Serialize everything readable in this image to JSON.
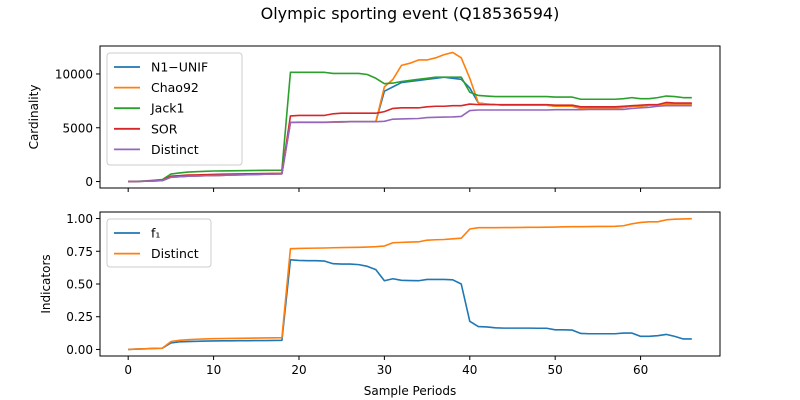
{
  "chart_data": [
    {
      "type": "line",
      "title": "Olympic sporting event (Q18536594)",
      "xlabel": "",
      "ylabel": "Cardinality",
      "xlim": [
        -3.3,
        69.3
      ],
      "ylim": [
        -600,
        12600
      ],
      "xticks": [
        0,
        10,
        20,
        30,
        40,
        50,
        60
      ],
      "yticks": [
        0,
        5000,
        10000
      ],
      "ytick_labels": [
        "0",
        "5000",
        "10000"
      ],
      "xtick_labels_visible": false,
      "legend": "top-left",
      "grid": false,
      "x": [
        0,
        1,
        2,
        3,
        4,
        5,
        6,
        7,
        8,
        9,
        10,
        11,
        12,
        13,
        14,
        15,
        16,
        17,
        18,
        19,
        20,
        21,
        22,
        23,
        24,
        25,
        26,
        27,
        28,
        29,
        30,
        31,
        32,
        33,
        34,
        35,
        36,
        37,
        38,
        39,
        40,
        41,
        42,
        43,
        44,
        45,
        46,
        47,
        48,
        49,
        50,
        51,
        52,
        53,
        54,
        55,
        56,
        57,
        58,
        59,
        60,
        61,
        62,
        63,
        64,
        65,
        66
      ],
      "series": [
        {
          "name": "N1−UNIF",
          "color": "#1f77b4",
          "values": [
            0,
            10,
            30,
            60,
            90,
            400,
            450,
            500,
            520,
            540,
            560,
            580,
            600,
            620,
            640,
            660,
            680,
            700,
            720,
            5500,
            5500,
            5500,
            5500,
            5500,
            5520,
            5540,
            5560,
            5560,
            5560,
            5560,
            8400,
            8800,
            9200,
            9300,
            9400,
            9500,
            9600,
            9700,
            9600,
            9500,
            8700,
            7300,
            7200,
            7150,
            7100,
            7100,
            7100,
            7100,
            7100,
            7100,
            7000,
            7000,
            7000,
            6800,
            6800,
            6800,
            6800,
            6800,
            6900,
            7000,
            7000,
            7100,
            7100,
            7200,
            7200,
            7200,
            7200
          ]
        },
        {
          "name": "Chao92",
          "color": "#ff7f0e",
          "values": [
            0,
            10,
            30,
            60,
            90,
            400,
            450,
            500,
            520,
            540,
            560,
            580,
            600,
            620,
            640,
            660,
            680,
            700,
            720,
            5500,
            5500,
            5500,
            5500,
            5500,
            5520,
            5540,
            5560,
            5560,
            5560,
            5560,
            8800,
            9500,
            10800,
            11000,
            11300,
            11300,
            11500,
            11800,
            12000,
            11500,
            9600,
            7300,
            7200,
            7150,
            7100,
            7100,
            7100,
            7100,
            7100,
            7100,
            7000,
            7000,
            7000,
            6800,
            6800,
            6800,
            6800,
            6800,
            6900,
            7000,
            7000,
            7100,
            7100,
            7200,
            7200,
            7200,
            7200
          ]
        },
        {
          "name": "Jack1",
          "color": "#2ca02c",
          "values": [
            0,
            20,
            60,
            120,
            180,
            700,
            800,
            880,
            920,
            950,
            980,
            990,
            1000,
            1010,
            1020,
            1030,
            1040,
            1050,
            1060,
            10150,
            10150,
            10150,
            10150,
            10150,
            10050,
            10050,
            10050,
            10050,
            9950,
            9600,
            9100,
            9150,
            9300,
            9400,
            9500,
            9600,
            9700,
            9700,
            9700,
            9700,
            8300,
            8000,
            7950,
            7900,
            7900,
            7900,
            7900,
            7900,
            7900,
            7900,
            7850,
            7850,
            7850,
            7650,
            7650,
            7650,
            7650,
            7650,
            7700,
            7800,
            7700,
            7700,
            7800,
            7950,
            7900,
            7800,
            7800
          ]
        },
        {
          "name": "SOR",
          "color": "#d62728",
          "values": [
            0,
            10,
            40,
            80,
            120,
            500,
            550,
            600,
            620,
            640,
            660,
            680,
            700,
            710,
            720,
            730,
            740,
            750,
            760,
            6100,
            6150,
            6150,
            6150,
            6150,
            6300,
            6350,
            6350,
            6350,
            6350,
            6350,
            6500,
            6800,
            6850,
            6850,
            6850,
            6950,
            7000,
            7000,
            7050,
            7050,
            7200,
            7150,
            7150,
            7150,
            7150,
            7150,
            7150,
            7150,
            7150,
            7150,
            7100,
            7100,
            7100,
            6950,
            6950,
            6950,
            6950,
            6950,
            7000,
            7050,
            7100,
            7150,
            7150,
            7350,
            7300,
            7300,
            7300
          ]
        },
        {
          "name": "Distinct",
          "color": "#9467bd",
          "values": [
            0,
            10,
            30,
            60,
            90,
            400,
            450,
            500,
            520,
            540,
            560,
            580,
            600,
            620,
            640,
            660,
            680,
            700,
            720,
            5500,
            5520,
            5520,
            5520,
            5520,
            5540,
            5560,
            5560,
            5560,
            5560,
            5560,
            5600,
            5800,
            5820,
            5840,
            5860,
            5950,
            5970,
            5990,
            6010,
            6050,
            6600,
            6650,
            6650,
            6650,
            6650,
            6650,
            6650,
            6650,
            6650,
            6650,
            6680,
            6680,
            6680,
            6680,
            6700,
            6700,
            6700,
            6700,
            6700,
            6800,
            6850,
            6900,
            7000,
            7050,
            7050,
            7050,
            7050
          ]
        }
      ]
    },
    {
      "type": "line",
      "title": "",
      "xlabel": "Sample Periods",
      "ylabel": "Indicators",
      "xlim": [
        -3.3,
        69.3
      ],
      "ylim": [
        -0.05,
        1.05
      ],
      "xticks": [
        0,
        10,
        20,
        30,
        40,
        50,
        60
      ],
      "xtick_labels": [
        "0",
        "10",
        "20",
        "30",
        "40",
        "50",
        "60"
      ],
      "yticks": [
        0,
        0.25,
        0.5,
        0.75,
        1.0
      ],
      "ytick_labels": [
        "0.00",
        "0.25",
        "0.50",
        "0.75",
        "1.00"
      ],
      "legend": "top-left",
      "grid": false,
      "x": [
        0,
        1,
        2,
        3,
        4,
        5,
        6,
        7,
        8,
        9,
        10,
        11,
        12,
        13,
        14,
        15,
        16,
        17,
        18,
        19,
        20,
        21,
        22,
        23,
        24,
        25,
        26,
        27,
        28,
        29,
        30,
        31,
        32,
        33,
        34,
        35,
        36,
        37,
        38,
        39,
        40,
        41,
        42,
        43,
        44,
        45,
        46,
        47,
        48,
        49,
        50,
        51,
        52,
        53,
        54,
        55,
        56,
        57,
        58,
        59,
        60,
        61,
        62,
        63,
        64,
        65,
        66
      ],
      "series": [
        {
          "name": "f₁",
          "color": "#1f77b4",
          "values": [
            0.0,
            0.003,
            0.005,
            0.008,
            0.01,
            0.05,
            0.058,
            0.06,
            0.062,
            0.064,
            0.065,
            0.066,
            0.066,
            0.067,
            0.067,
            0.068,
            0.068,
            0.069,
            0.07,
            0.685,
            0.68,
            0.678,
            0.678,
            0.675,
            0.655,
            0.652,
            0.652,
            0.648,
            0.635,
            0.61,
            0.525,
            0.54,
            0.528,
            0.526,
            0.525,
            0.535,
            0.535,
            0.535,
            0.532,
            0.5,
            0.215,
            0.175,
            0.172,
            0.165,
            0.163,
            0.163,
            0.163,
            0.163,
            0.162,
            0.162,
            0.15,
            0.15,
            0.148,
            0.122,
            0.12,
            0.12,
            0.12,
            0.12,
            0.125,
            0.125,
            0.1,
            0.1,
            0.105,
            0.115,
            0.1,
            0.08,
            0.08
          ]
        },
        {
          "name": "Distinct",
          "color": "#ff7f0e",
          "values": [
            0.0,
            0.003,
            0.005,
            0.008,
            0.01,
            0.06,
            0.07,
            0.075,
            0.078,
            0.08,
            0.082,
            0.083,
            0.084,
            0.085,
            0.086,
            0.087,
            0.088,
            0.089,
            0.09,
            0.77,
            0.772,
            0.773,
            0.774,
            0.775,
            0.777,
            0.778,
            0.779,
            0.78,
            0.782,
            0.785,
            0.79,
            0.815,
            0.818,
            0.82,
            0.822,
            0.835,
            0.838,
            0.84,
            0.845,
            0.85,
            0.92,
            0.93,
            0.93,
            0.93,
            0.931,
            0.931,
            0.932,
            0.933,
            0.933,
            0.934,
            0.935,
            0.937,
            0.938,
            0.938,
            0.939,
            0.94,
            0.94,
            0.941,
            0.945,
            0.96,
            0.97,
            0.975,
            0.975,
            0.99,
            0.995,
            0.997,
            0.999
          ]
        }
      ]
    }
  ]
}
